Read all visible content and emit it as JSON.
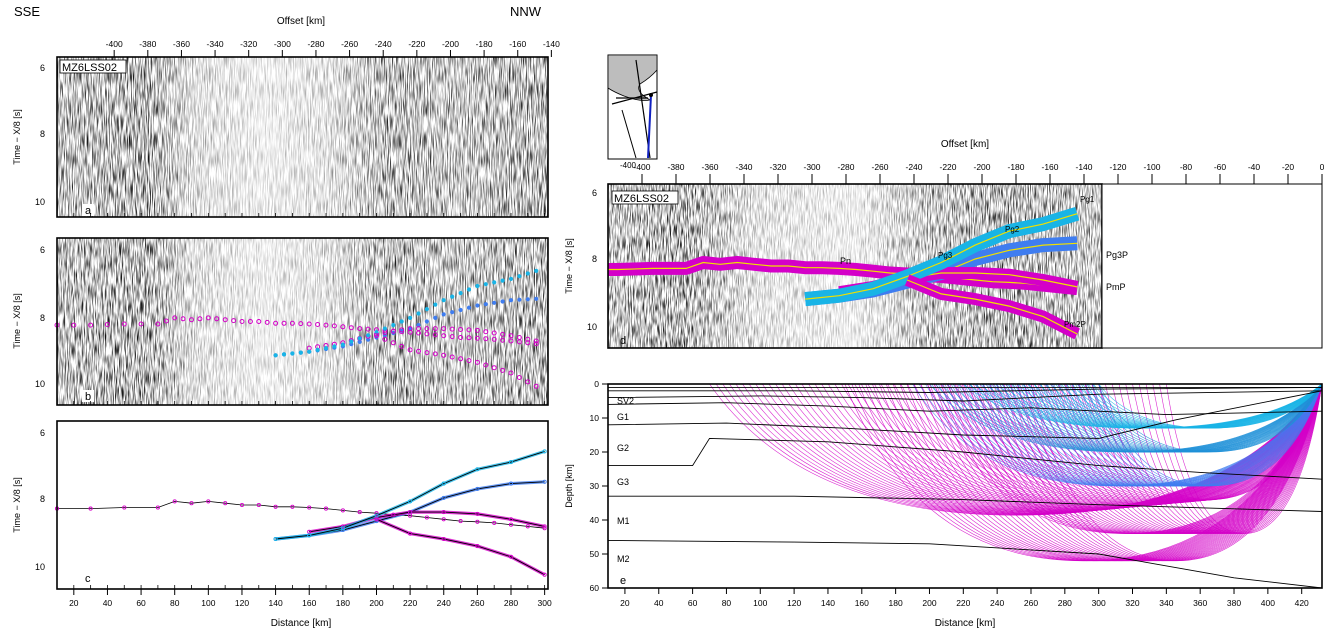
{
  "header": {
    "left": "SSE",
    "right": "NNW"
  },
  "colors": {
    "pick_magenta": "#d400c8",
    "pick_blue": "#3f7df0",
    "pick_cyan": "#19b4e6",
    "trace_yellow": "#f0e000",
    "trace_green": "#00c060",
    "ink": "#000000"
  },
  "left_column": {
    "offset_axis": {
      "label": "Offset [km]",
      "ticks": [
        "-400",
        "-380",
        "-360",
        "-340",
        "-320",
        "-300",
        "-280",
        "-260",
        "-240",
        "-220",
        "-200",
        "-180",
        "-160",
        "-140"
      ]
    },
    "distance_axis": {
      "label": "Distance [km]",
      "ticks": [
        "20",
        "40",
        "60",
        "80",
        "100",
        "120",
        "140",
        "160",
        "180",
        "200",
        "220",
        "240",
        "260",
        "280",
        "300"
      ]
    },
    "panels": [
      {
        "letter": "a",
        "station": "MZ6LSS02",
        "ylabel": "Time − X/8 [s]",
        "yticks": [
          "6",
          "8",
          "10"
        ]
      },
      {
        "letter": "b",
        "ylabel": "Time − X/8 [s]",
        "yticks": [
          "6",
          "8",
          "10"
        ]
      },
      {
        "letter": "c",
        "ylabel": "Time − X/8 [s]",
        "yticks": [
          "6",
          "8",
          "10"
        ]
      }
    ]
  },
  "right_column": {
    "offset_axis": {
      "label": "Offset [km]",
      "ticks": [
        "-400",
        "-380",
        "-360",
        "-340",
        "-320",
        "-300",
        "-280",
        "-260",
        "-240",
        "-220",
        "-200",
        "-180",
        "-160",
        "-140",
        "-120",
        "-100",
        "-80",
        "-60",
        "-40",
        "-20",
        "0"
      ]
    },
    "panel_d": {
      "letter": "d",
      "station": "MZ6LSS02",
      "ylabel": "Time − X/8 [s]",
      "yticks": [
        "6",
        "8",
        "10"
      ],
      "phase_labels": [
        "Pn",
        "Pg1",
        "Pg2",
        "Pg3",
        "Pg3P",
        "PmP",
        "Pm2P"
      ]
    },
    "panel_e": {
      "letter": "e",
      "ylabel": "Depth [km]",
      "yticks": [
        "0",
        "10",
        "20",
        "30",
        "40",
        "50",
        "60"
      ],
      "xlabel": "Distance [km]",
      "xticks": [
        "20",
        "40",
        "60",
        "80",
        "100",
        "120",
        "140",
        "160",
        "180",
        "200",
        "220",
        "240",
        "260",
        "280",
        "300",
        "320",
        "340",
        "360",
        "380",
        "400",
        "420"
      ],
      "layers": [
        "SV2",
        "G1",
        "G2",
        "G3",
        "M1",
        "M2"
      ]
    },
    "inset": {
      "ticks": [
        "-400"
      ]
    }
  },
  "chart_data": {
    "type": "scatter",
    "xlabel": "Distance [km]",
    "ylabel": "Time − X/8 [s]",
    "xlim": [
      10,
      302
    ],
    "ylim": [
      10.5,
      5.8
    ],
    "series": [
      {
        "name": "Pn",
        "x": [
          10,
          30,
          50,
          70,
          80,
          90,
          100,
          110,
          120,
          130,
          140,
          150,
          160,
          170,
          180,
          190,
          200,
          210,
          220,
          230,
          240,
          250,
          260,
          270,
          280,
          290,
          300
        ],
        "y": [
          8.25,
          8.25,
          8.22,
          8.22,
          8.05,
          8.1,
          8.05,
          8.1,
          8.15,
          8.15,
          8.2,
          8.2,
          8.22,
          8.25,
          8.3,
          8.35,
          8.38,
          8.42,
          8.45,
          8.5,
          8.55,
          8.6,
          8.62,
          8.65,
          8.7,
          8.75,
          8.8
        ]
      },
      {
        "name": "Pg3P",
        "x": [
          140,
          160,
          180,
          200,
          220,
          240,
          260,
          280,
          300
        ],
        "y": [
          9.1,
          9.0,
          8.85,
          8.6,
          8.35,
          7.95,
          7.7,
          7.55,
          7.5
        ]
      },
      {
        "name": "PmP",
        "x": [
          160,
          180,
          200,
          220,
          240,
          260,
          280,
          300
        ],
        "y": [
          8.9,
          8.75,
          8.5,
          8.35,
          8.35,
          8.4,
          8.55,
          8.75
        ]
      },
      {
        "name": "Pg1",
        "x": [
          140,
          160,
          180,
          200,
          220,
          240,
          260,
          280,
          300
        ],
        "y": [
          9.1,
          9.0,
          8.8,
          8.45,
          8.05,
          7.55,
          7.15,
          6.95,
          6.65
        ]
      },
      {
        "name": "Pm2P",
        "x": [
          200,
          220,
          240,
          260,
          280,
          300
        ],
        "y": [
          8.55,
          8.95,
          9.1,
          9.3,
          9.6,
          10.1
        ]
      }
    ]
  }
}
